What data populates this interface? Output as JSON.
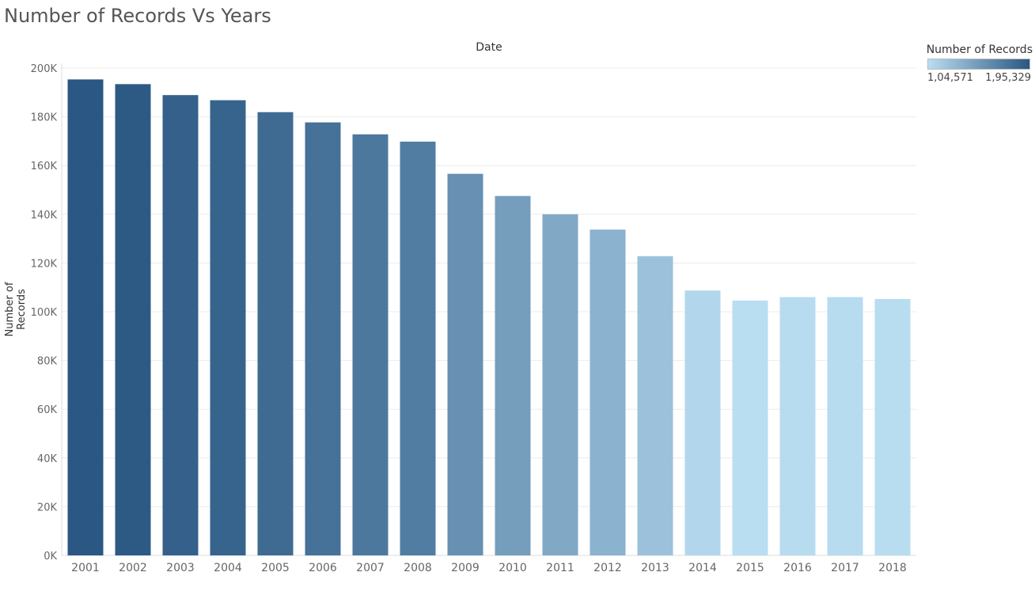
{
  "title": "Number of Records Vs Years",
  "chart_data": {
    "type": "bar",
    "title": "Number of Records Vs Years",
    "xlabel": "Date",
    "ylabel": "Number of Records",
    "categories": [
      "2001",
      "2002",
      "2003",
      "2004",
      "2005",
      "2006",
      "2007",
      "2008",
      "2009",
      "2010",
      "2011",
      "2012",
      "2013",
      "2014",
      "2015",
      "2016",
      "2017",
      "2018"
    ],
    "values": [
      195329,
      193400,
      188900,
      186800,
      181900,
      177700,
      172800,
      169800,
      156600,
      147500,
      140000,
      133700,
      122800,
      108700,
      104571,
      106000,
      106000,
      105200
    ],
    "ylim": [
      0,
      200000
    ],
    "yticks": [
      0,
      20000,
      40000,
      60000,
      80000,
      100000,
      120000,
      140000,
      160000,
      180000,
      200000
    ],
    "ytick_labels": [
      "0K",
      "20K",
      "40K",
      "60K",
      "80K",
      "100K",
      "120K",
      "140K",
      "160K",
      "180K",
      "200K"
    ],
    "grid": true,
    "legend_placement": "top-right"
  },
  "legend": {
    "title": "Number of Records",
    "min_label": "1,04,571",
    "max_label": "1,95,329",
    "min_color": "#b9ddf1",
    "max_color": "#2a5783"
  }
}
